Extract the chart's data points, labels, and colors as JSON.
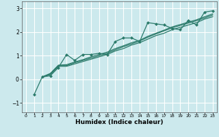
{
  "title": "",
  "xlabel": "Humidex (Indice chaleur)",
  "ylabel": "",
  "background_color": "#cce9ed",
  "grid_color": "#ffffff",
  "line_color": "#2a7a6a",
  "marker_color": "#2a7a6a",
  "xlim": [
    -0.5,
    23.5
  ],
  "ylim": [
    -1.4,
    3.3
  ],
  "xticks": [
    0,
    1,
    2,
    3,
    4,
    5,
    6,
    7,
    8,
    9,
    10,
    11,
    12,
    13,
    14,
    15,
    16,
    17,
    18,
    19,
    20,
    21,
    22,
    23
  ],
  "yticks": [
    -1,
    0,
    1,
    2,
    3
  ],
  "series": [
    [
      null,
      -0.65,
      0.1,
      0.15,
      0.5,
      1.05,
      0.8,
      1.05,
      1.05,
      1.1,
      1.05,
      1.6,
      1.75,
      1.75,
      1.6,
      2.4,
      2.35,
      2.3,
      2.15,
      2.1,
      2.5,
      2.3,
      2.85,
      2.9
    ],
    [
      null,
      null,
      0.1,
      0.2,
      0.55,
      0.55,
      0.65,
      0.75,
      0.85,
      0.95,
      1.05,
      1.2,
      1.3,
      1.45,
      1.55,
      1.7,
      1.85,
      1.95,
      2.1,
      2.2,
      2.3,
      2.4,
      2.55,
      2.65
    ],
    [
      null,
      null,
      0.1,
      0.22,
      0.58,
      0.58,
      0.7,
      0.8,
      0.9,
      1.0,
      1.1,
      1.25,
      1.38,
      1.5,
      1.62,
      1.78,
      1.92,
      2.05,
      2.18,
      2.28,
      2.38,
      2.48,
      2.6,
      2.72
    ],
    [
      null,
      null,
      0.1,
      0.25,
      0.6,
      0.62,
      0.73,
      0.83,
      0.95,
      1.05,
      1.15,
      1.3,
      1.42,
      1.55,
      1.65,
      1.82,
      1.95,
      2.08,
      2.22,
      2.32,
      2.42,
      2.52,
      2.65,
      2.77
    ]
  ]
}
